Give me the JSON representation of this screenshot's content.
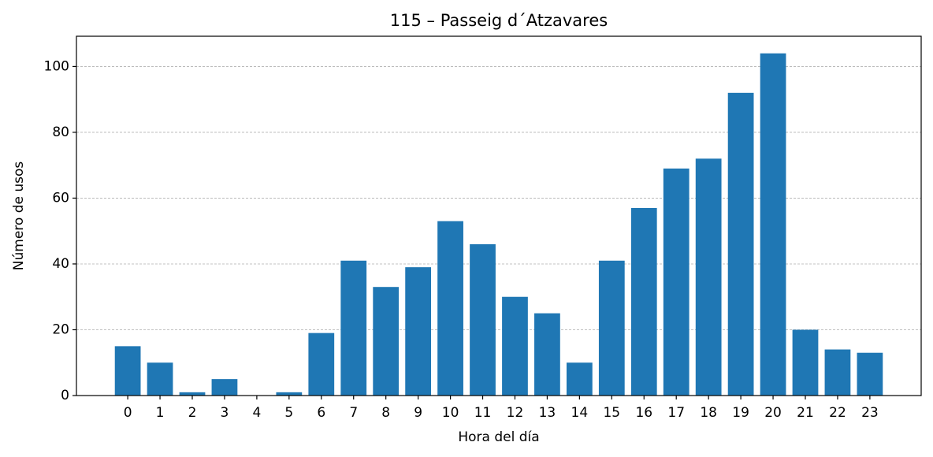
{
  "chart_data": {
    "type": "bar",
    "title": "115 – Passeig d´Atzavares",
    "x_label": "Hora del día",
    "y_label": "Número de usos",
    "x": [
      0,
      1,
      2,
      3,
      4,
      5,
      6,
      7,
      8,
      9,
      10,
      11,
      12,
      13,
      14,
      15,
      16,
      17,
      18,
      19,
      20,
      21,
      22,
      23
    ],
    "values": [
      15,
      10,
      1,
      5,
      0,
      1,
      19,
      41,
      33,
      39,
      53,
      46,
      30,
      25,
      10,
      41,
      57,
      69,
      72,
      92,
      104,
      20,
      14,
      13
    ],
    "color": "#1f77b4",
    "xlim": [
      -1.59,
      24.59
    ],
    "xticks": [
      0,
      1,
      2,
      3,
      4,
      5,
      6,
      7,
      8,
      9,
      10,
      11,
      12,
      13,
      14,
      15,
      16,
      17,
      18,
      19,
      20,
      21,
      22,
      23
    ],
    "ylim": [
      0,
      109.2
    ],
    "yticks": [
      0,
      20,
      40,
      60,
      80,
      100
    ],
    "grid": true
  }
}
